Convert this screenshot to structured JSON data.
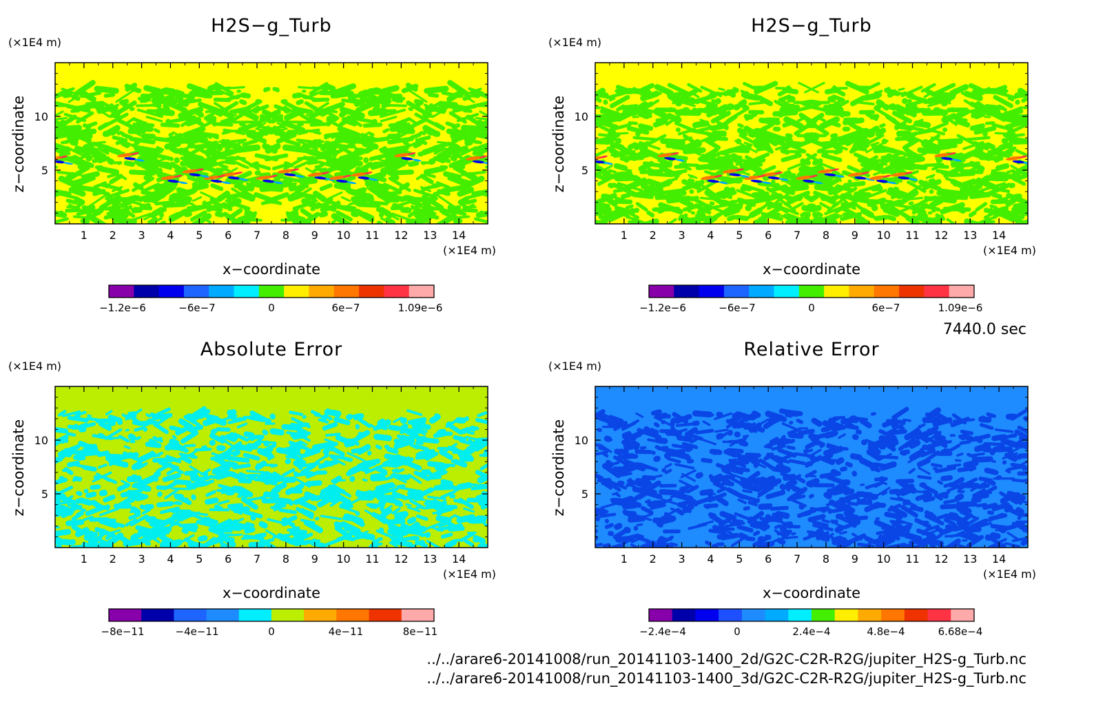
{
  "time_label": "7440.0 sec",
  "footer_lines": [
    "../../arare6-20141008/run_20141103-1400_2d/G2C-C2R-R2G/jupiter_H2S-g_Turb.nc",
    "../../arare6-20141008/run_20141103-1400_3d/G2C-C2R-R2G/jupiter_H2S-g_Turb.nc"
  ],
  "chart_data": [
    {
      "type": "heatmap",
      "title": "H2S−g_Turb",
      "xlabel": "x−coordinate",
      "ylabel": "z−coordinate",
      "x_unit": "(×1E4 m)",
      "y_unit": "(×1E4 m)",
      "xlim": [
        0,
        15
      ],
      "ylim": [
        0,
        15
      ],
      "xticks": [
        "1",
        "2",
        "3",
        "4",
        "5",
        "6",
        "7",
        "8",
        "9",
        "10",
        "11",
        "12",
        "13",
        "14"
      ],
      "yticks": [
        "5",
        "10"
      ],
      "background_color": "#ffff00",
      "pattern_color": "#44ee00",
      "colorbar": {
        "colors": [
          "#8800aa",
          "#0000aa",
          "#0000ee",
          "#1e64ff",
          "#00aaff",
          "#00eeff",
          "#44ee00",
          "#ffee00",
          "#ffaa00",
          "#ff7700",
          "#ee3300",
          "#ff3344",
          "#ffaaaa"
        ],
        "labels": [
          "−1.2e−6",
          "−6e−7",
          "0",
          "6e−7",
          "1.09e−6"
        ]
      }
    },
    {
      "type": "heatmap",
      "title": "H2S−g_Turb",
      "xlabel": "x−coordinate",
      "ylabel": "z−coordinate",
      "x_unit": "(×1E4 m)",
      "y_unit": "(×1E4 m)",
      "xlim": [
        0,
        15
      ],
      "ylim": [
        0,
        15
      ],
      "xticks": [
        "1",
        "2",
        "3",
        "4",
        "5",
        "6",
        "7",
        "8",
        "9",
        "10",
        "11",
        "12",
        "13",
        "14"
      ],
      "yticks": [
        "5",
        "10"
      ],
      "background_color": "#ffff00",
      "pattern_color": "#44ee00",
      "colorbar": {
        "colors": [
          "#8800aa",
          "#0000aa",
          "#0000ee",
          "#1e64ff",
          "#00aaff",
          "#00eeff",
          "#44ee00",
          "#ffee00",
          "#ffaa00",
          "#ff7700",
          "#ee3300",
          "#ff3344",
          "#ffaaaa"
        ],
        "labels": [
          "−1.2e−6",
          "−6e−7",
          "0",
          "6e−7",
          "1.09e−6"
        ]
      }
    },
    {
      "type": "heatmap",
      "title": "Absolute Error",
      "xlabel": "x−coordinate",
      "ylabel": "z−coordinate",
      "x_unit": "(×1E4 m)",
      "y_unit": "(×1E4 m)",
      "xlim": [
        0,
        15
      ],
      "ylim": [
        0,
        15
      ],
      "xticks": [
        "1",
        "2",
        "3",
        "4",
        "5",
        "6",
        "7",
        "8",
        "9",
        "10",
        "11",
        "12",
        "13",
        "14"
      ],
      "yticks": [
        "5",
        "10"
      ],
      "background_color": "#bbee00",
      "pattern_color": "#00eeee",
      "colorbar": {
        "colors": [
          "#8800aa",
          "#0000aa",
          "#1e64ff",
          "#1e8cff",
          "#00eeff",
          "#bbee00",
          "#ffaa00",
          "#ff7700",
          "#ee3300",
          "#ffaaaa"
        ],
        "labels": [
          "−8e−11",
          "−4e−11",
          "0",
          "4e−11",
          "8e−11"
        ]
      }
    },
    {
      "type": "heatmap",
      "title": "Relative Error",
      "xlabel": "x−coordinate",
      "ylabel": "z−coordinate",
      "x_unit": "(×1E4 m)",
      "y_unit": "(×1E4 m)",
      "xlim": [
        0,
        15
      ],
      "ylim": [
        0,
        15
      ],
      "xticks": [
        "1",
        "2",
        "3",
        "4",
        "5",
        "6",
        "7",
        "8",
        "9",
        "10",
        "11",
        "12",
        "13",
        "14"
      ],
      "yticks": [
        "5",
        "10"
      ],
      "background_color": "#1e8cff",
      "pattern_color": "#0a46e6",
      "colorbar": {
        "colors": [
          "#8800aa",
          "#0000aa",
          "#0000ee",
          "#1e50ff",
          "#1e8cff",
          "#00aaff",
          "#00eeff",
          "#44ee00",
          "#ffee00",
          "#ffaa00",
          "#ff7700",
          "#ee3300",
          "#ff3344",
          "#ffaaaa"
        ],
        "labels": [
          "−2.4e−4",
          "0",
          "2.4e−4",
          "4.8e−4",
          "6.68e−4"
        ]
      }
    }
  ]
}
